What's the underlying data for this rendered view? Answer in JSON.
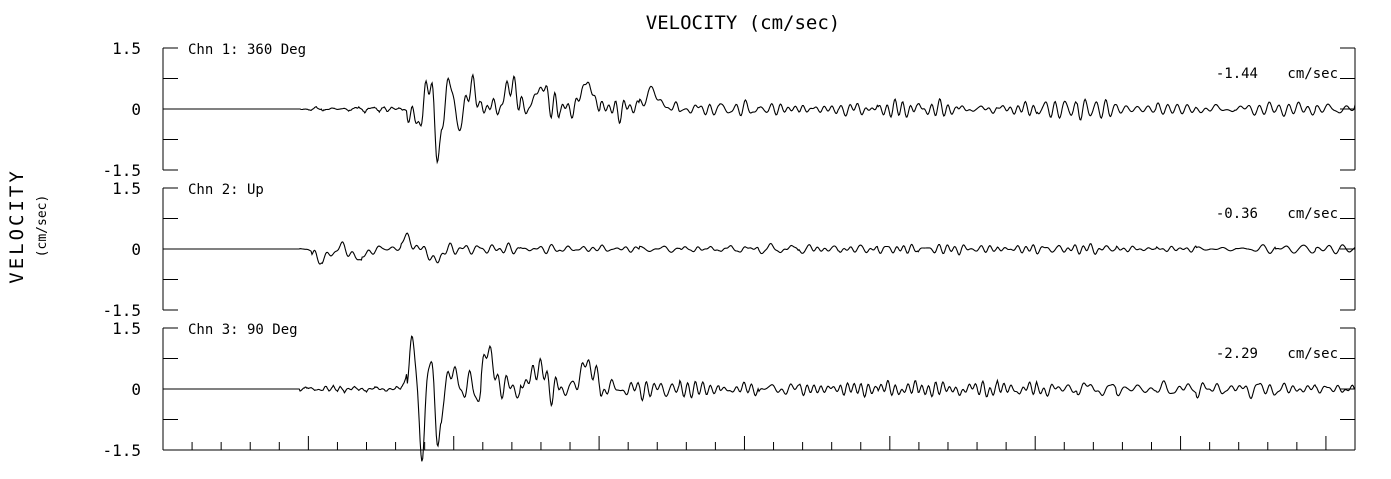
{
  "chart_data": {
    "type": "line",
    "title": "VELOCITY (cm/sec)",
    "ylabel": "VELOCITY",
    "ylabel_units": "(cm/sec)",
    "xlabel": "",
    "grid": false,
    "panels": [
      {
        "name": "Chn 1: 360 Deg",
        "peak_label": "-1.44",
        "peak_units": "cm/sec",
        "ylim": [
          -1.5,
          1.5
        ],
        "yticks": [
          "1.5",
          "0",
          "-1.5"
        ],
        "onset": 0.115,
        "main_start": 0.205,
        "pulses": [
          [
            0.215,
            0.0,
            -0.55,
            0.01
          ],
          [
            0.223,
            0.0,
            1.05,
            0.01
          ],
          [
            0.231,
            0.0,
            -1.4,
            0.01
          ],
          [
            0.239,
            0.0,
            1.05,
            0.01
          ],
          [
            0.247,
            0.0,
            -0.6,
            0.01
          ],
          [
            0.258,
            0.0,
            0.5,
            0.012
          ],
          [
            0.292,
            0.0,
            0.55,
            0.012
          ],
          [
            0.318,
            0.0,
            0.5,
            0.012
          ],
          [
            0.356,
            0.0,
            0.6,
            0.012
          ],
          [
            0.41,
            0.0,
            0.4,
            0.015
          ]
        ],
        "noise_pre": 0.1,
        "noise_main": 0.42,
        "noise_tail": 0.14,
        "seed": 7
      },
      {
        "name": "Chn 2: Up",
        "peak_label": "-0.36",
        "peak_units": "cm/sec",
        "ylim": [
          -1.5,
          1.5
        ],
        "yticks": [
          "1.5",
          "0",
          "-1.5"
        ],
        "onset": 0.115,
        "main_start": 0.125,
        "pulses": [
          [
            0.133,
            0.0,
            -0.32,
            0.01
          ],
          [
            0.165,
            0.0,
            -0.28,
            0.01
          ],
          [
            0.205,
            0.0,
            0.25,
            0.01
          ],
          [
            0.228,
            0.0,
            -0.28,
            0.01
          ]
        ],
        "noise_pre": 0.02,
        "noise_main": 0.22,
        "noise_tail": 0.1,
        "seed": 13
      },
      {
        "name": "Chn 3: 90 Deg",
        "peak_label": "-2.29",
        "peak_units": "cm/sec",
        "ylim": [
          -1.5,
          1.5
        ],
        "yticks": [
          "1.5",
          "0",
          "-1.5"
        ],
        "onset": 0.115,
        "main_start": 0.205,
        "pulses": [
          [
            0.21,
            0.0,
            1.5,
            0.008
          ],
          [
            0.217,
            0.0,
            -2.1,
            0.008
          ],
          [
            0.224,
            0.0,
            1.5,
            0.008
          ],
          [
            0.231,
            0.0,
            -1.7,
            0.008
          ],
          [
            0.24,
            0.0,
            0.6,
            0.01
          ],
          [
            0.274,
            0.0,
            0.85,
            0.01
          ],
          [
            0.314,
            0.0,
            0.55,
            0.012
          ],
          [
            0.356,
            0.0,
            0.65,
            0.012
          ]
        ],
        "noise_pre": 0.1,
        "noise_main": 0.45,
        "noise_tail": 0.15,
        "seed": 21
      }
    ]
  }
}
